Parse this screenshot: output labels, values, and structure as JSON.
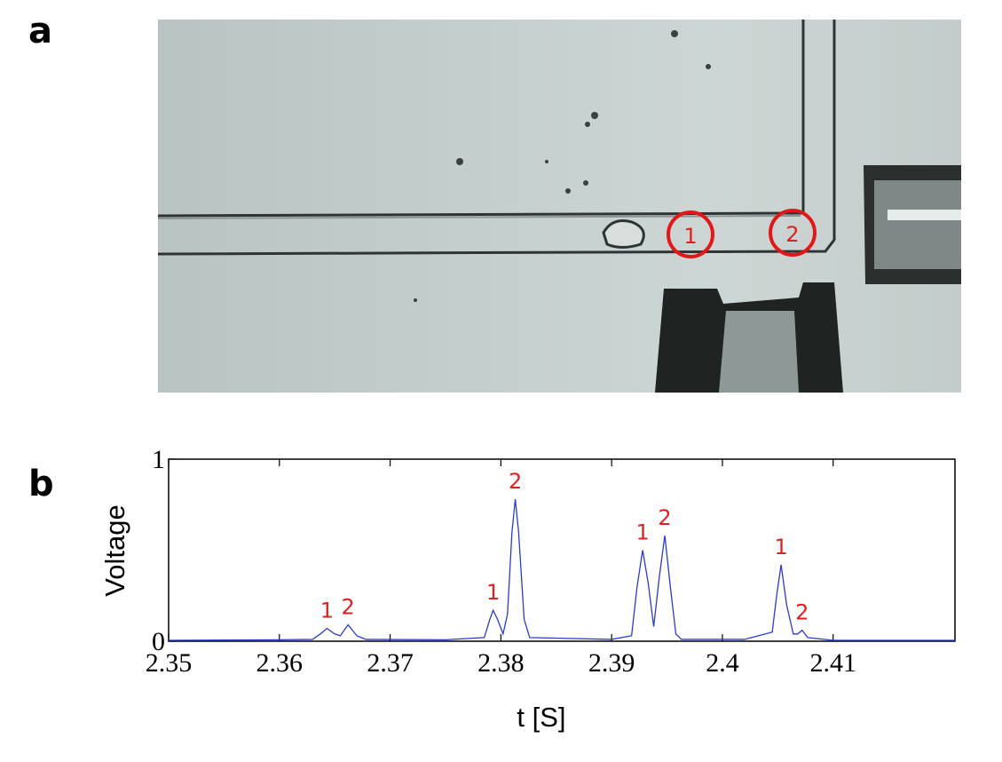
{
  "panel_a": {
    "label": "a",
    "markers": [
      "1",
      "2"
    ]
  },
  "chart_data": {
    "type": "line",
    "panel_label": "b",
    "xlabel": "t  [S]",
    "ylabel": "Voltage",
    "xlim": [
      2.35,
      2.421
    ],
    "ylim": [
      0,
      1
    ],
    "xticks": [
      2.35,
      2.36,
      2.37,
      2.38,
      2.39,
      2.4,
      2.41
    ],
    "yticks": [
      0,
      1
    ],
    "series": [
      {
        "name": "Voltage",
        "color": "#2a3bd0",
        "x": [
          2.35,
          2.36,
          2.363,
          2.3637,
          2.3643,
          2.365,
          2.3655,
          2.3662,
          2.367,
          2.3678,
          2.375,
          2.3785,
          2.379,
          2.3793,
          2.3797,
          2.3802,
          2.3806,
          2.381,
          2.3813,
          2.3816,
          2.3821,
          2.3826,
          2.39,
          2.3918,
          2.3923,
          2.3928,
          2.3933,
          2.3938,
          2.3943,
          2.3948,
          2.3953,
          2.3958,
          2.3963,
          2.402,
          2.4045,
          2.4049,
          2.4053,
          2.4058,
          2.4064,
          2.4068,
          2.4072,
          2.4077,
          2.41,
          2.421
        ],
        "values": [
          0.005,
          0.008,
          0.01,
          0.04,
          0.07,
          0.04,
          0.03,
          0.09,
          0.03,
          0.01,
          0.008,
          0.02,
          0.12,
          0.17,
          0.12,
          0.04,
          0.15,
          0.6,
          0.78,
          0.6,
          0.12,
          0.02,
          0.01,
          0.03,
          0.3,
          0.5,
          0.32,
          0.08,
          0.35,
          0.58,
          0.3,
          0.04,
          0.01,
          0.01,
          0.05,
          0.25,
          0.42,
          0.2,
          0.04,
          0.04,
          0.06,
          0.02,
          0.005,
          0.005
        ]
      }
    ],
    "annotations": [
      {
        "label": "1",
        "x": 2.3643,
        "y": 0.07
      },
      {
        "label": "2",
        "x": 2.3662,
        "y": 0.09
      },
      {
        "label": "1",
        "x": 2.3793,
        "y": 0.17
      },
      {
        "label": "2",
        "x": 2.3813,
        "y": 0.78
      },
      {
        "label": "1",
        "x": 2.3928,
        "y": 0.5
      },
      {
        "label": "2",
        "x": 2.3948,
        "y": 0.58
      },
      {
        "label": "1",
        "x": 2.4053,
        "y": 0.42
      },
      {
        "label": "2",
        "x": 2.4072,
        "y": 0.06
      }
    ]
  }
}
